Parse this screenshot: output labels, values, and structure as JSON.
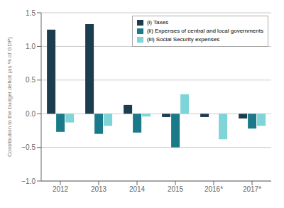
{
  "chart_data": {
    "type": "bar",
    "ylabel": "Contribution to the budget deficit (as % of GDP)",
    "categories": [
      "2012",
      "2013",
      "2014",
      "2015",
      "2016*",
      "2017*"
    ],
    "series": [
      {
        "name": "(i) Taxes",
        "color": "#1c3d4e",
        "values": [
          1.25,
          1.33,
          0.13,
          -0.05,
          -0.05,
          -0.07
        ]
      },
      {
        "name": "(ii) Expenses of central and local governments",
        "color": "#1a7a8a",
        "values": [
          -0.27,
          -0.3,
          -0.28,
          -0.5,
          0.0,
          -0.22
        ]
      },
      {
        "name": "(iii) Social Security expenses",
        "color": "#7fd4d8",
        "values": [
          -0.13,
          -0.18,
          -0.04,
          0.29,
          -0.38,
          -0.18
        ]
      }
    ],
    "ylim": [
      -1.0,
      1.5
    ],
    "yticks": [
      {
        "value": -1.0,
        "label": "−1.0"
      },
      {
        "value": -0.5,
        "label": "−0.5"
      },
      {
        "value": 0.0,
        "label": "0.0"
      },
      0.5,
      {
        "value": 1.0,
        "label": "1.0"
      },
      1.5
    ],
    "grid": true,
    "legend": "upper right"
  }
}
